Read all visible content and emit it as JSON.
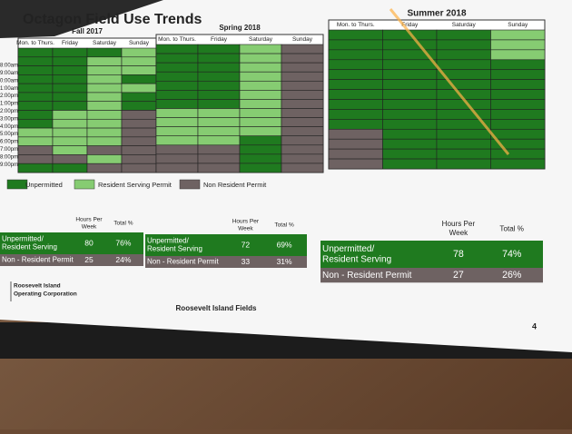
{
  "title": "Octagon Field Use Trends",
  "time_labels": [
    "8:00am",
    "9:00am",
    "0:00am",
    "1:00am",
    "2:00pm",
    "1:00pm",
    "2:00pm",
    "3:00pm",
    "4:00pm",
    "5:00pm",
    "6:00pm",
    "7:00pm",
    "8:00pm",
    "9:00pm"
  ],
  "panels": [
    {
      "title": "Fall 2017",
      "columns": [
        "Mon. to Thurs.",
        "Friday",
        "Saturday",
        "Sunday"
      ]
    },
    {
      "title": "Spring 2018",
      "columns": [
        "Mon. to Thurs.",
        "Friday",
        "Saturday",
        "Sunday"
      ]
    },
    {
      "title": "Summer 2018",
      "columns": [
        "Mon. to Thurs.",
        "Friday",
        "Saturday",
        "Sunday"
      ]
    }
  ],
  "legend": [
    "Unpermitted",
    "Resident Serving Permit",
    "Non Resident Permit"
  ],
  "tables": [
    {
      "headers": [
        [
          "Hours Per",
          "Week"
        ],
        [
          "Total %"
        ]
      ],
      "rows": [
        {
          "label": [
            "Unpermitted/",
            "Resident Serving"
          ],
          "hours": "80",
          "percent": "76%"
        },
        {
          "label": [
            "Non - Resident Permit"
          ],
          "hours": "25",
          "percent": "24%"
        }
      ]
    },
    {
      "headers": [
        [
          "Hours Per",
          "Week"
        ],
        [
          "Total %"
        ]
      ],
      "rows": [
        {
          "label": [
            "Unpermitted/",
            "Resident Serving"
          ],
          "hours": "72",
          "percent": "69%"
        },
        {
          "label": [
            "Non - Resident Permit"
          ],
          "hours": "33",
          "percent": "31%"
        }
      ]
    },
    {
      "headers": [
        [
          "Hours Per",
          "Week"
        ],
        [
          "Total %"
        ]
      ],
      "rows": [
        {
          "label": [
            "Unpermitted/",
            "Resident Serving"
          ],
          "hours": "78",
          "percent": "74%"
        },
        {
          "label": [
            "Non - Resident Permit"
          ],
          "hours": "27",
          "percent": "26%"
        }
      ]
    }
  ],
  "footer": {
    "org": [
      "Roosevelt Island",
      "Operating Corporation"
    ],
    "center": "Roosevelt Island Fields",
    "page": "4"
  }
}
